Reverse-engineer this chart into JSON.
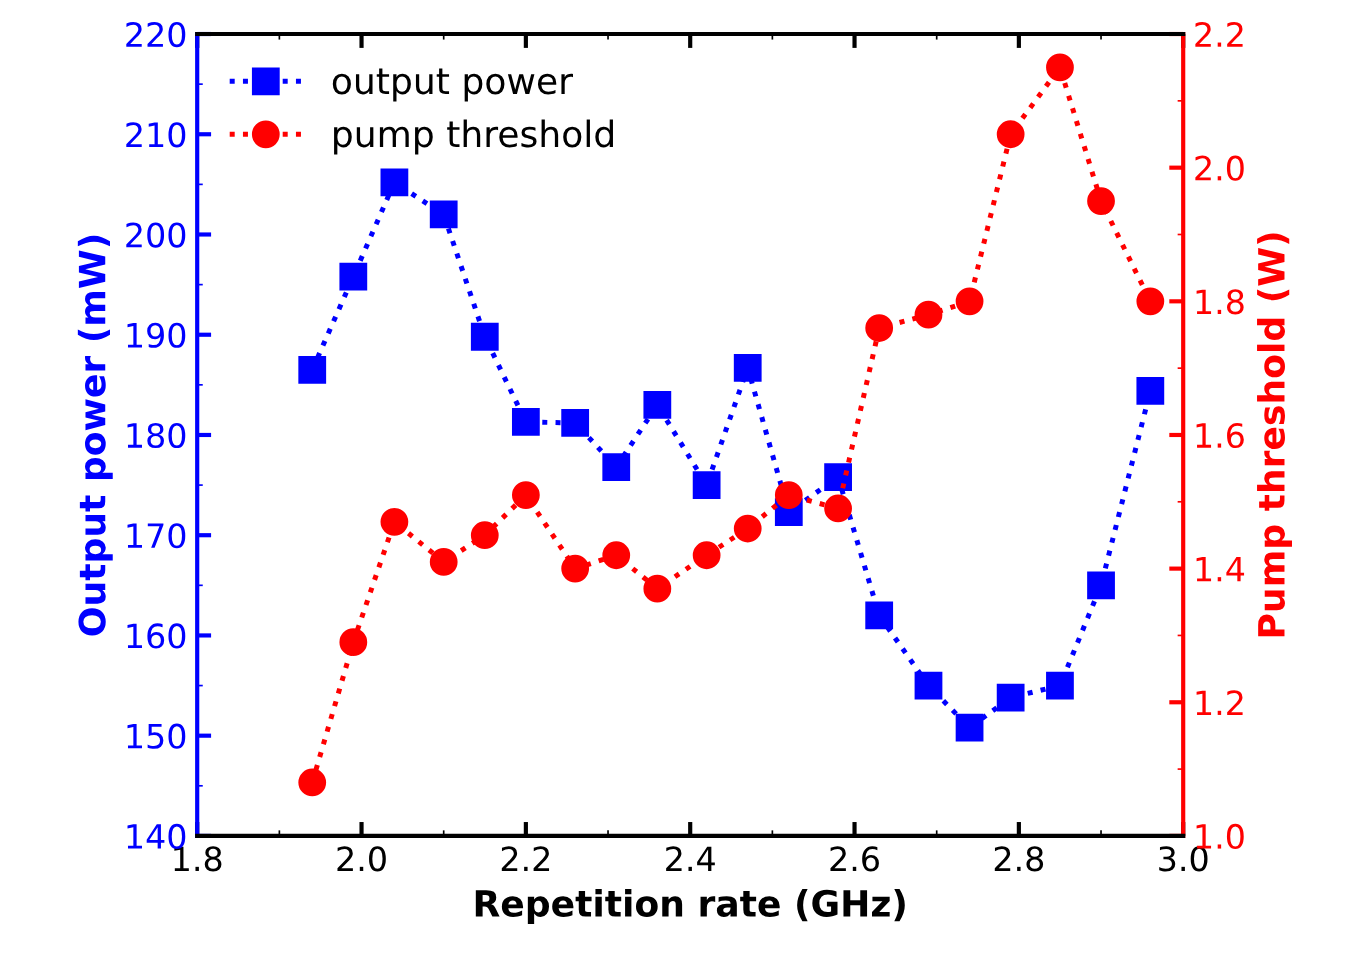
{
  "chart_data": {
    "type": "line",
    "xlabel": "Repetition rate (GHz)",
    "ylabel": "Output power (mW)",
    "y2label": "Pump threshold (W)",
    "x": [
      1.94,
      1.99,
      2.04,
      2.1,
      2.15,
      2.2,
      2.26,
      2.31,
      2.36,
      2.42,
      2.47,
      2.52,
      2.58,
      2.63,
      2.69,
      2.74,
      2.79,
      2.85,
      2.9,
      2.96
    ],
    "series": [
      {
        "name": "output power",
        "color": "#0000ff",
        "marker": "square",
        "line_style": "dotted",
        "values": [
          186.5,
          195.8,
          205.2,
          202,
          189.8,
          181.3,
          181.2,
          176.8,
          183,
          175,
          186.7,
          172.3,
          175.8,
          162,
          155,
          150.8,
          153.8,
          155,
          165,
          184.4
        ]
      },
      {
        "name": "pump threshold",
        "color": "#ff0000",
        "marker": "circle",
        "line_style": "dotted",
        "axis": "y2",
        "values": [
          1.08,
          1.29,
          1.47,
          1.41,
          1.45,
          1.51,
          1.4,
          1.42,
          1.37,
          1.42,
          1.46,
          1.51,
          1.49,
          1.76,
          1.78,
          1.8,
          2.05,
          2.15,
          1.95,
          1.8
        ]
      }
    ],
    "xlim": [
      1.8,
      3.0
    ],
    "xticks": [
      {
        "value": 1.8,
        "label": "1.8"
      },
      {
        "value": 2.0,
        "label": "2.0"
      },
      {
        "value": 2.2,
        "label": "2.2"
      },
      {
        "value": 2.4,
        "label": "2.4"
      },
      {
        "value": 2.6,
        "label": "2.6"
      },
      {
        "value": 2.8,
        "label": "2.8"
      },
      {
        "value": 3.0,
        "label": "3.0"
      }
    ],
    "ylim": [
      140,
      220
    ],
    "yticks": [
      140,
      150,
      160,
      170,
      180,
      190,
      200,
      210,
      220
    ],
    "y2lim": [
      1.0,
      2.2
    ],
    "y2ticks": [
      {
        "value": 1.0,
        "label": "1.0"
      },
      {
        "value": 1.2,
        "label": "1.2"
      },
      {
        "value": 1.4,
        "label": "1.4"
      },
      {
        "value": 1.6,
        "label": "1.6"
      },
      {
        "value": 1.8,
        "label": "1.8"
      },
      {
        "value": 2.0,
        "label": "2.0"
      },
      {
        "value": 2.2,
        "label": "2.2"
      }
    ],
    "grid": false,
    "legend": "top left"
  }
}
